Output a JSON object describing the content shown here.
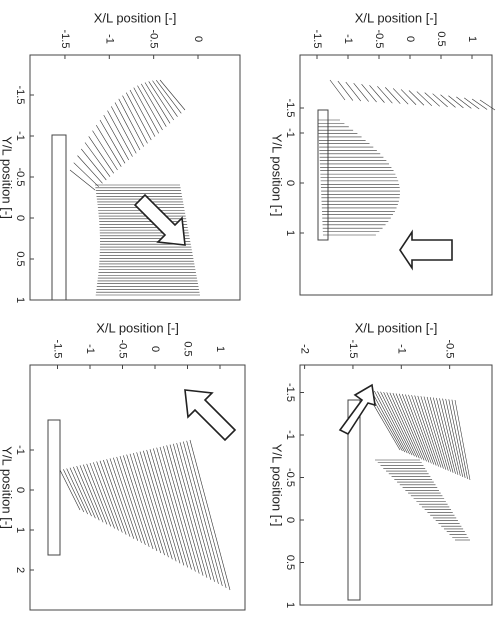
{
  "panels": [
    {
      "x_label": "X/L position [-]",
      "y_label": "Y/L position [-]",
      "xticks": [
        -1.5,
        -1,
        -0.5,
        0
      ],
      "yticks": [
        -1.5,
        -1,
        -0.5,
        0,
        0.5,
        1
      ]
    },
    {
      "x_label": "X/L position [-]",
      "y_label": "Y/L position [-]",
      "xticks": [
        -1.5,
        -1,
        -0.5,
        0,
        0.5,
        1
      ],
      "yticks": [
        -1.5,
        -1,
        0,
        1
      ]
    },
    {
      "x_label": "X/L position [-]",
      "y_label": "Y/L position [-]",
      "xticks": [
        -1.5,
        -1,
        -0.5,
        0,
        0.5,
        1
      ],
      "yticks": [
        -1,
        0,
        1,
        2
      ]
    },
    {
      "x_label": "X/L position [-]",
      "y_label": "Y/L position [-]",
      "xticks": [
        -2,
        -1.5,
        -1,
        -0.5
      ],
      "yticks": [
        -1.5,
        -1,
        -0.5,
        0,
        0.5,
        1
      ]
    }
  ]
}
